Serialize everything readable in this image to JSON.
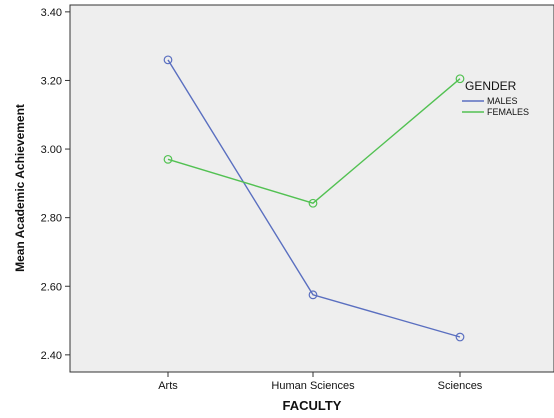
{
  "chart_data": {
    "type": "line",
    "xlabel": "FACULTY",
    "ylabel": "Mean Academic Achievement",
    "categories": [
      "Arts",
      "Human Sciences",
      "Sciences"
    ],
    "ylim": [
      2.35,
      3.42
    ],
    "yticks": [
      "2.40",
      "2.60",
      "2.80",
      "3.00",
      "3.20",
      "3.40"
    ],
    "grid": false,
    "legend_title": "GENDER",
    "legend_position": "right",
    "series": [
      {
        "name": "MALES",
        "color": "#5a6fc0",
        "values": [
          3.26,
          2.575,
          2.452
        ]
      },
      {
        "name": "FEMALES",
        "color": "#52c152",
        "values": [
          2.97,
          2.842,
          3.205
        ]
      }
    ],
    "plot_background": "#eeeeee"
  }
}
